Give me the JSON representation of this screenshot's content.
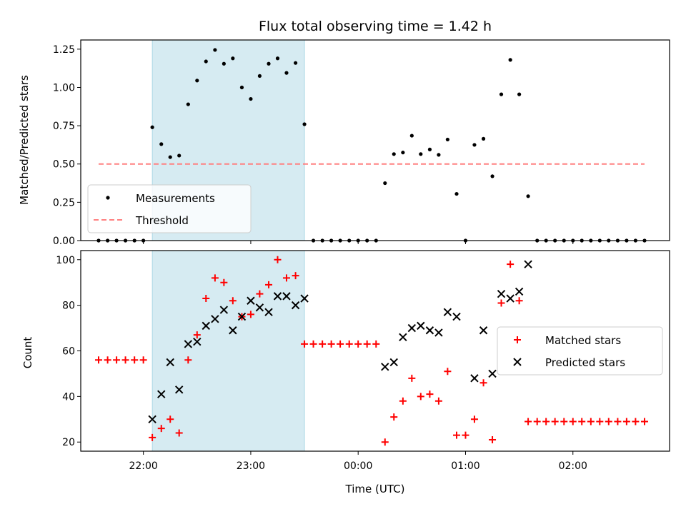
{
  "chart_data": [
    {
      "type": "scatter",
      "title": "Flux total observing time = 1.42 h",
      "ylabel": "Matched/Predicted stars",
      "xlabel": "",
      "xlim": [
        21.4167,
        26.9
      ],
      "ylim": [
        0,
        1.31
      ],
      "yticks": [
        0.0,
        0.25,
        0.5,
        0.75,
        1.0,
        1.25
      ],
      "ytick_labels": [
        "0.00",
        "0.25",
        "0.50",
        "0.75",
        "1.00",
        "1.25"
      ],
      "xticks": [
        22,
        23,
        24,
        25,
        26
      ],
      "shaded_interval": [
        22.0833,
        23.5
      ],
      "shaded_color": "#add8e6",
      "legend_position": "lower left",
      "series": [
        {
          "name": "Measurements",
          "marker": "dot",
          "color": "#000000",
          "points": [
            [
              21.583,
              0
            ],
            [
              21.667,
              0
            ],
            [
              21.75,
              0
            ],
            [
              21.833,
              0
            ],
            [
              21.917,
              0
            ],
            [
              22.0,
              0
            ],
            [
              22.083,
              0.74
            ],
            [
              22.167,
              0.63
            ],
            [
              22.25,
              0.545
            ],
            [
              22.333,
              0.555
            ],
            [
              22.417,
              0.89
            ],
            [
              22.5,
              1.045
            ],
            [
              22.583,
              1.17
            ],
            [
              22.667,
              1.245
            ],
            [
              22.75,
              1.155
            ],
            [
              22.833,
              1.19
            ],
            [
              22.917,
              1.0
            ],
            [
              23.0,
              0.925
            ],
            [
              23.083,
              1.075
            ],
            [
              23.167,
              1.155
            ],
            [
              23.25,
              1.19
            ],
            [
              23.333,
              1.095
            ],
            [
              23.417,
              1.16
            ],
            [
              23.5,
              0.76
            ],
            [
              23.583,
              0
            ],
            [
              23.667,
              0
            ],
            [
              23.75,
              0
            ],
            [
              23.833,
              0
            ],
            [
              23.917,
              0
            ],
            [
              24.0,
              0
            ],
            [
              24.083,
              0
            ],
            [
              24.167,
              0
            ],
            [
              24.25,
              0.375
            ],
            [
              24.333,
              0.565
            ],
            [
              24.417,
              0.575
            ],
            [
              24.5,
              0.685
            ],
            [
              24.583,
              0.565
            ],
            [
              24.667,
              0.595
            ],
            [
              24.75,
              0.56
            ],
            [
              24.833,
              0.66
            ],
            [
              24.917,
              0.305
            ],
            [
              25.0,
              0
            ],
            [
              25.083,
              0.625
            ],
            [
              25.167,
              0.665
            ],
            [
              25.25,
              0.42
            ],
            [
              25.333,
              0.955
            ],
            [
              25.417,
              1.18
            ],
            [
              25.5,
              0.955
            ],
            [
              25.583,
              0.29
            ],
            [
              25.667,
              0
            ],
            [
              25.75,
              0
            ],
            [
              25.833,
              0
            ],
            [
              25.917,
              0
            ],
            [
              26.0,
              0
            ],
            [
              26.083,
              0
            ],
            [
              26.167,
              0
            ],
            [
              26.25,
              0
            ],
            [
              26.333,
              0
            ],
            [
              26.417,
              0
            ],
            [
              26.5,
              0
            ],
            [
              26.583,
              0
            ],
            [
              26.667,
              0
            ]
          ]
        },
        {
          "name": "Threshold",
          "marker": "dashed-line",
          "color": "#ff8080",
          "points": [
            [
              21.583,
              0.5
            ],
            [
              26.667,
              0.5
            ]
          ]
        }
      ]
    },
    {
      "type": "scatter",
      "title": "",
      "ylabel": "Count",
      "xlabel": "Time (UTC)",
      "xlim": [
        21.4167,
        26.9
      ],
      "ylim": [
        16,
        104
      ],
      "yticks": [
        20,
        40,
        60,
        80,
        100
      ],
      "ytick_labels": [
        "20",
        "40",
        "60",
        "80",
        "100"
      ],
      "xticks": [
        22,
        23,
        24,
        25,
        26
      ],
      "xtick_labels": [
        "22:00",
        "23:00",
        "00:00",
        "01:00",
        "02:00"
      ],
      "shaded_interval": [
        22.0833,
        23.5
      ],
      "shaded_color": "#add8e6",
      "legend_position": "center right",
      "series": [
        {
          "name": "Matched stars",
          "marker": "plus",
          "color": "#ff0000",
          "points": [
            [
              21.583,
              56
            ],
            [
              21.667,
              56
            ],
            [
              21.75,
              56
            ],
            [
              21.833,
              56
            ],
            [
              21.917,
              56
            ],
            [
              22.0,
              56
            ],
            [
              22.083,
              22
            ],
            [
              22.167,
              26
            ],
            [
              22.25,
              30
            ],
            [
              22.333,
              24
            ],
            [
              22.417,
              56
            ],
            [
              22.5,
              67
            ],
            [
              22.583,
              83
            ],
            [
              22.667,
              92
            ],
            [
              22.75,
              90
            ],
            [
              22.833,
              82
            ],
            [
              22.917,
              75
            ],
            [
              23.0,
              76
            ],
            [
              23.083,
              85
            ],
            [
              23.167,
              89
            ],
            [
              23.25,
              100
            ],
            [
              23.333,
              92
            ],
            [
              23.417,
              93
            ],
            [
              23.5,
              63
            ],
            [
              23.583,
              63
            ],
            [
              23.667,
              63
            ],
            [
              23.75,
              63
            ],
            [
              23.833,
              63
            ],
            [
              23.917,
              63
            ],
            [
              24.0,
              63
            ],
            [
              24.083,
              63
            ],
            [
              24.167,
              63
            ],
            [
              24.25,
              20
            ],
            [
              24.333,
              31
            ],
            [
              24.417,
              38
            ],
            [
              24.5,
              48
            ],
            [
              24.583,
              40
            ],
            [
              24.667,
              41
            ],
            [
              24.75,
              38
            ],
            [
              24.833,
              51
            ],
            [
              24.917,
              23
            ],
            [
              25.0,
              23
            ],
            [
              25.083,
              30
            ],
            [
              25.167,
              46
            ],
            [
              25.25,
              21
            ],
            [
              25.333,
              81
            ],
            [
              25.417,
              98
            ],
            [
              25.5,
              82
            ],
            [
              25.583,
              29
            ],
            [
              25.667,
              29
            ],
            [
              25.75,
              29
            ],
            [
              25.833,
              29
            ],
            [
              25.917,
              29
            ],
            [
              26.0,
              29
            ],
            [
              26.083,
              29
            ],
            [
              26.167,
              29
            ],
            [
              26.25,
              29
            ],
            [
              26.333,
              29
            ],
            [
              26.417,
              29
            ],
            [
              26.5,
              29
            ],
            [
              26.583,
              29
            ],
            [
              26.667,
              29
            ]
          ]
        },
        {
          "name": "Predicted stars",
          "marker": "x",
          "color": "#000000",
          "points": [
            [
              22.083,
              30
            ],
            [
              22.167,
              41
            ],
            [
              22.25,
              55
            ],
            [
              22.333,
              43
            ],
            [
              22.417,
              63
            ],
            [
              22.5,
              64
            ],
            [
              22.583,
              71
            ],
            [
              22.667,
              74
            ],
            [
              22.75,
              78
            ],
            [
              22.833,
              69
            ],
            [
              22.917,
              75
            ],
            [
              23.0,
              82
            ],
            [
              23.083,
              79
            ],
            [
              23.167,
              77
            ],
            [
              23.25,
              84
            ],
            [
              23.333,
              84
            ],
            [
              23.417,
              80
            ],
            [
              23.5,
              83
            ],
            [
              24.25,
              53
            ],
            [
              24.333,
              55
            ],
            [
              24.417,
              66
            ],
            [
              24.5,
              70
            ],
            [
              24.583,
              71
            ],
            [
              24.667,
              69
            ],
            [
              24.75,
              68
            ],
            [
              24.833,
              77
            ],
            [
              24.917,
              75
            ],
            [
              25.083,
              48
            ],
            [
              25.167,
              69
            ],
            [
              25.25,
              50
            ],
            [
              25.333,
              85
            ],
            [
              25.417,
              83
            ],
            [
              25.5,
              86
            ],
            [
              25.583,
              98
            ]
          ]
        }
      ]
    }
  ]
}
